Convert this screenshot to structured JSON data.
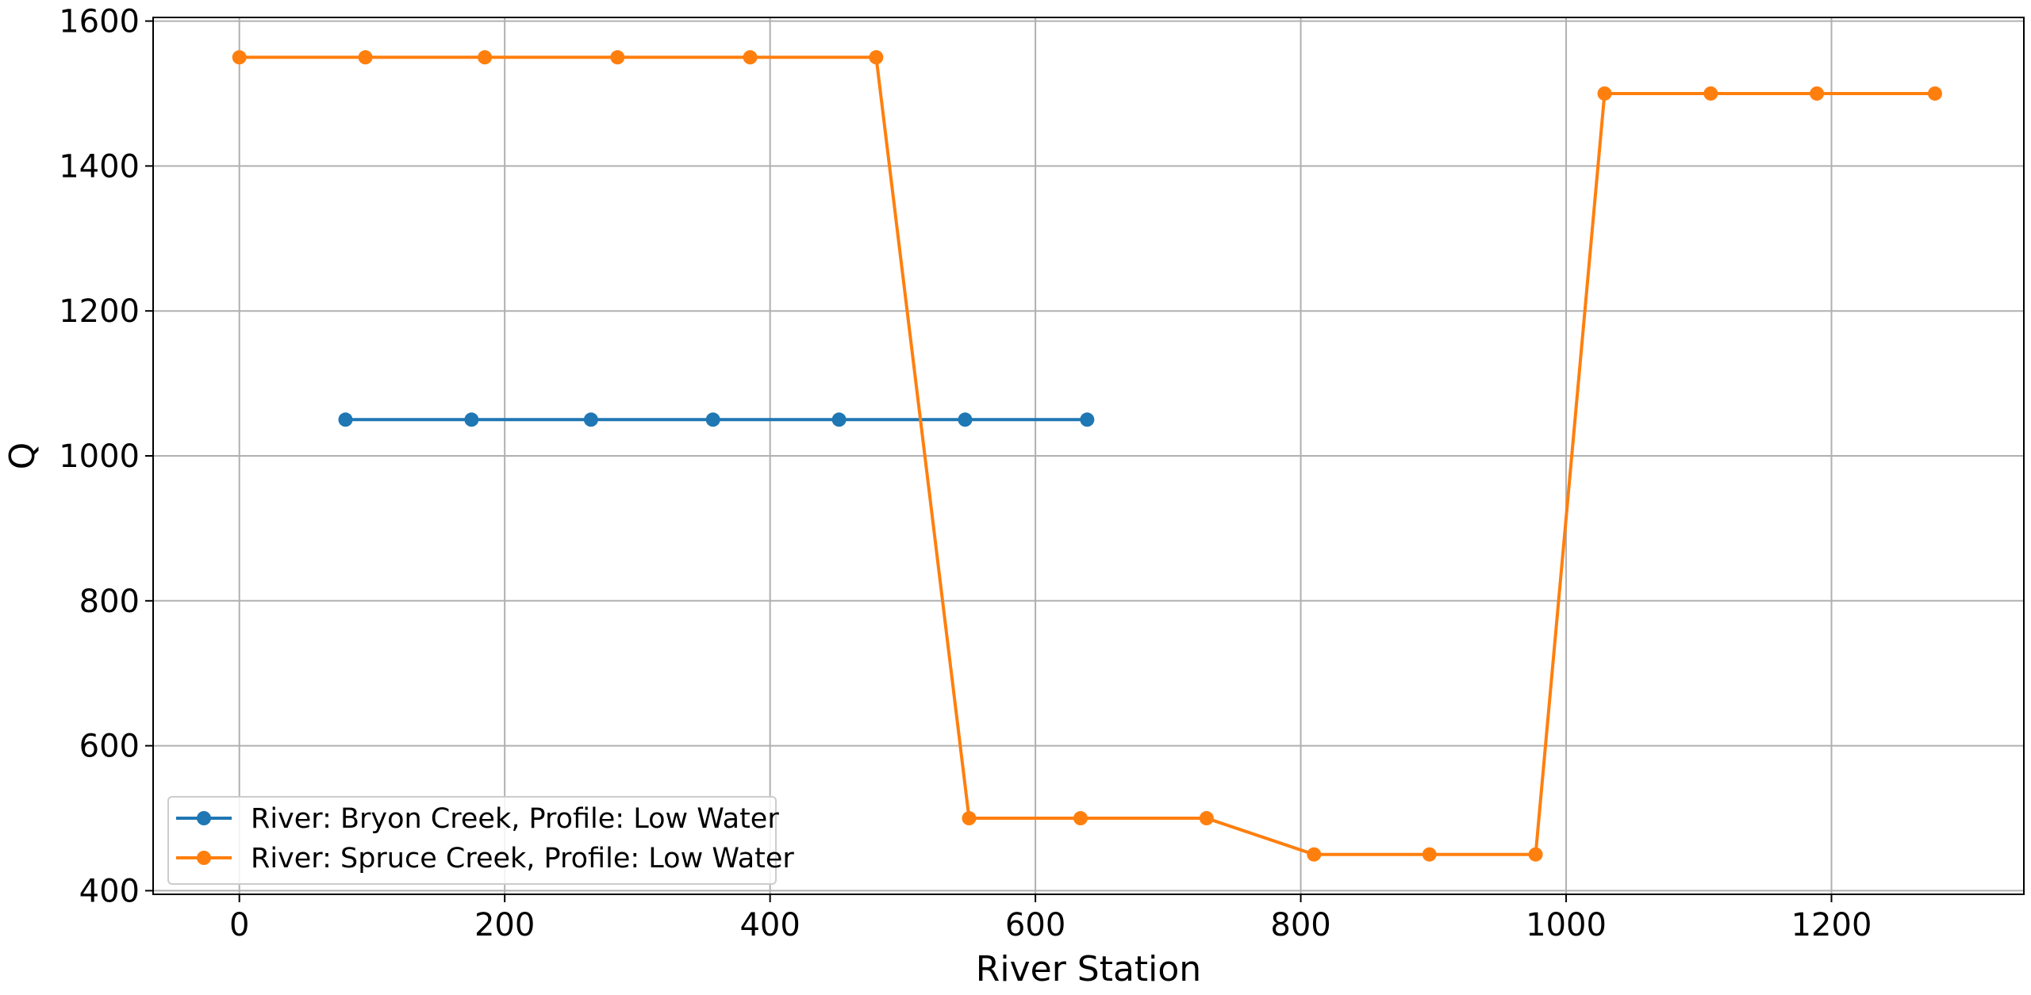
{
  "chart_data": {
    "type": "line",
    "title": "",
    "xlabel": "River Station",
    "ylabel": "Q",
    "xlim": [
      -65,
      1345
    ],
    "ylim": [
      395,
      1605
    ],
    "xticks": [
      "0",
      "200",
      "400",
      "600",
      "800",
      "1000",
      "1200"
    ],
    "yticks": [
      "400",
      "600",
      "800",
      "1000",
      "1200",
      "1400",
      "1600"
    ],
    "grid": true,
    "legend_position": "lower-left",
    "series": [
      {
        "name": "River: Bryon Creek, Profile: Low Water",
        "color": "#1f77b4",
        "marker": "circle",
        "x": [
          80,
          175,
          265,
          357,
          452,
          547,
          639
        ],
        "y": [
          1050,
          1050,
          1050,
          1050,
          1050,
          1050,
          1050
        ]
      },
      {
        "name": "River: Spruce Creek, Profile: Low Water",
        "color": "#ff7f0e",
        "marker": "circle",
        "x": [
          0,
          95,
          185,
          285,
          385,
          480,
          550,
          634,
          729,
          810,
          897,
          977,
          1029,
          1109,
          1189,
          1278
        ],
        "y": [
          1550,
          1550,
          1550,
          1550,
          1550,
          1550,
          500,
          500,
          500,
          450,
          450,
          450,
          1500,
          1500,
          1500,
          1500
        ]
      }
    ]
  }
}
